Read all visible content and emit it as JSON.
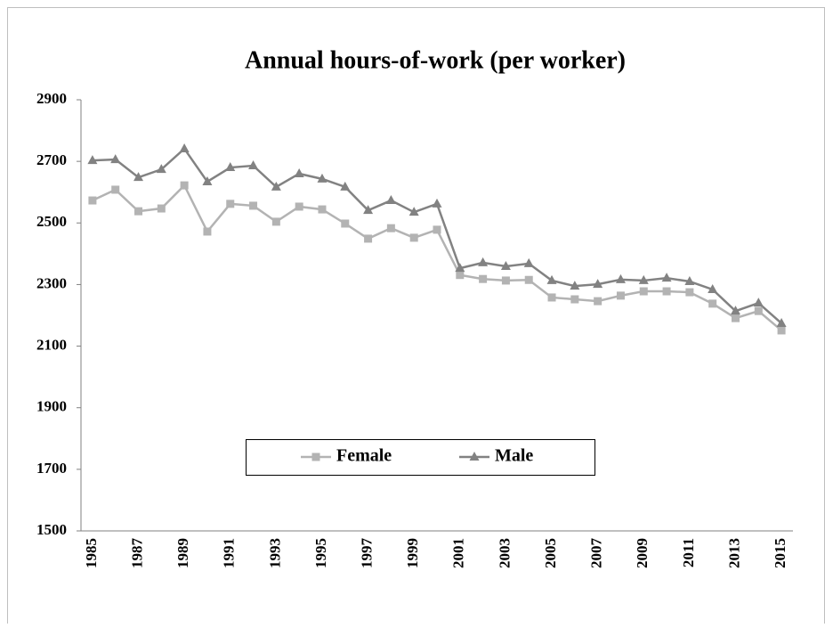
{
  "chart_data": {
    "type": "line",
    "title": "Annual hours-of-work (per worker)",
    "categories": [
      "1985",
      null,
      "1987",
      null,
      "1989",
      null,
      "1991",
      null,
      "1993",
      null,
      "1995",
      null,
      "1997",
      null,
      "1999",
      null,
      "2001",
      null,
      "2003",
      null,
      "2005",
      null,
      "2007",
      null,
      "2009",
      null,
      "2011",
      null,
      "2013",
      null,
      "2015"
    ],
    "series": [
      {
        "name": "Female",
        "color": "#b3b3b3",
        "marker": "square",
        "values": [
          2573,
          2608,
          2538,
          2547,
          2622,
          2472,
          2562,
          2556,
          2504,
          2553,
          2544,
          2498,
          2449,
          2483,
          2452,
          2478,
          2331,
          2318,
          2313,
          2315,
          2258,
          2252,
          2246,
          2264,
          2278,
          2278,
          2275,
          2238,
          2191,
          2214,
          2151
        ]
      },
      {
        "name": "Male",
        "color": "#828282",
        "marker": "triangle",
        "values": [
          2703,
          2706,
          2648,
          2674,
          2741,
          2634,
          2680,
          2686,
          2617,
          2660,
          2643,
          2617,
          2541,
          2573,
          2535,
          2562,
          2353,
          2371,
          2359,
          2368,
          2313,
          2295,
          2301,
          2316,
          2313,
          2321,
          2310,
          2284,
          2214,
          2240,
          2174
        ]
      }
    ],
    "ylim": [
      1500,
      2900
    ],
    "yticks": [
      1500,
      1700,
      1900,
      2100,
      2300,
      2500,
      2700,
      2900
    ],
    "grid": false,
    "legend": "lower center"
  }
}
